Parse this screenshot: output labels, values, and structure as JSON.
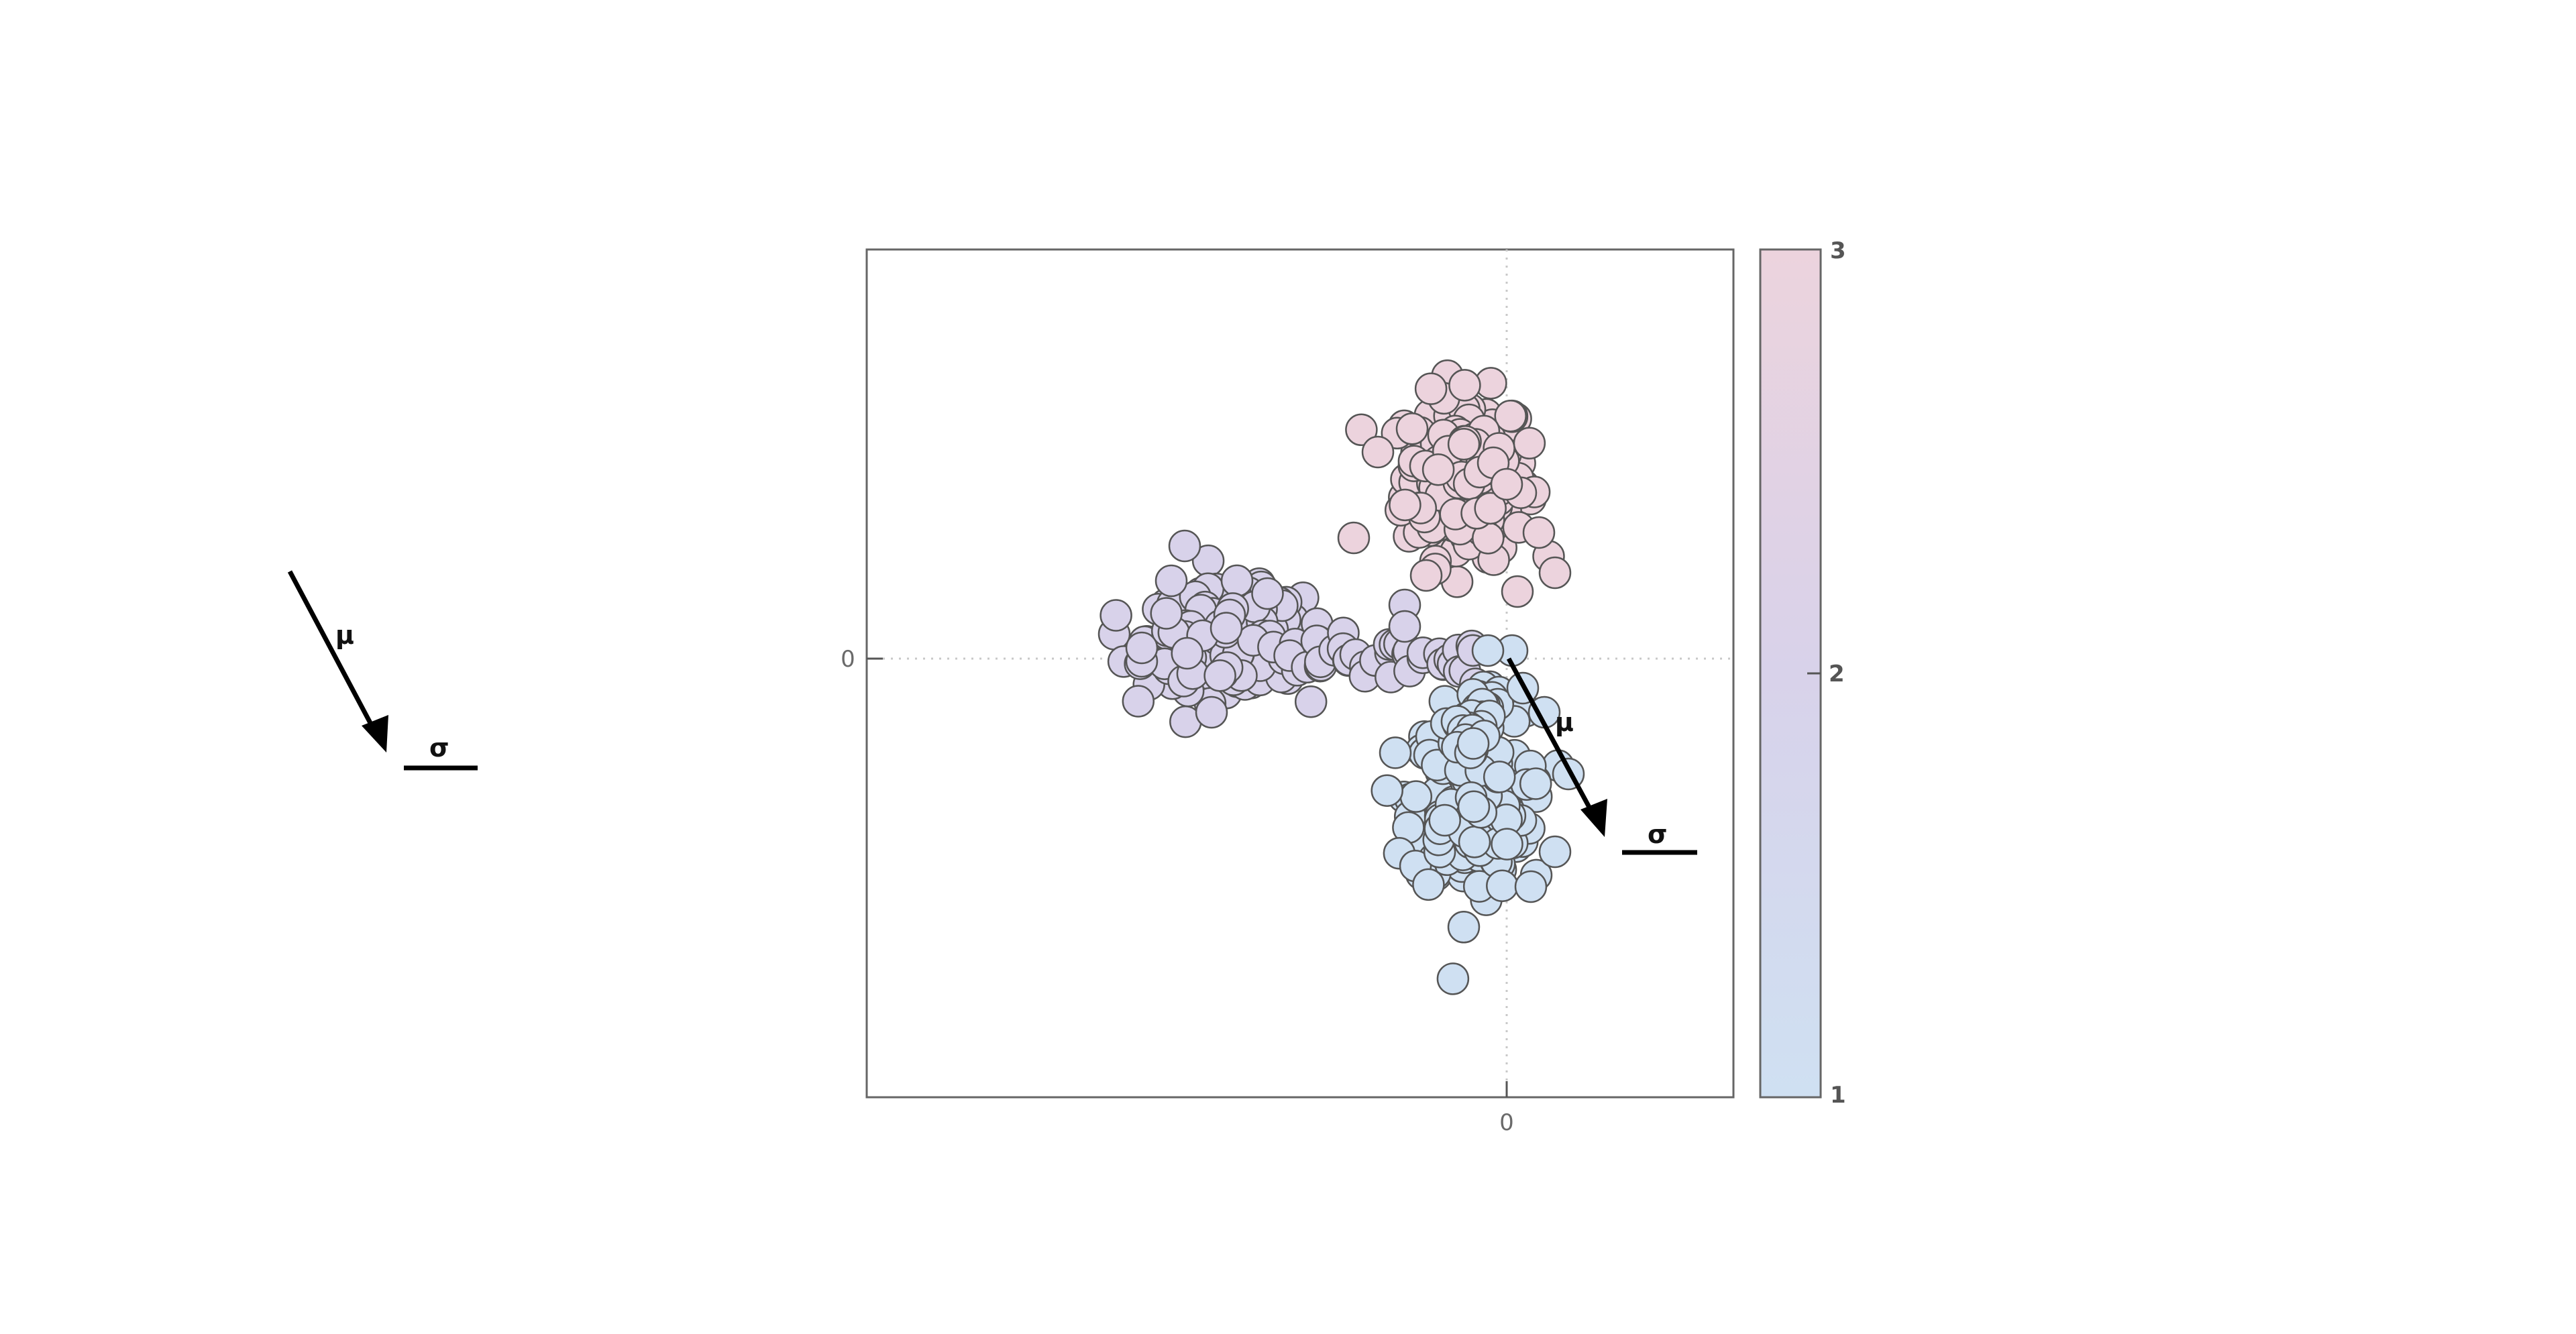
{
  "chart_data": {
    "type": "scatter",
    "title": "",
    "xlabel": "",
    "ylabel": "",
    "x_ticks": [
      "0"
    ],
    "y_ticks": [
      "0"
    ],
    "grid": "dotted crosshair at 0",
    "colorbar": {
      "ticks": [
        "1",
        "2",
        "3"
      ],
      "range": [
        1,
        3
      ],
      "color_low": "#cfe0f2",
      "color_mid": "#d8d2ea",
      "color_high": "#ecd3dd"
    },
    "legend": {
      "mu_label": "μ",
      "sigma_label": "σ"
    },
    "in_plot_annotation": {
      "mu_label": "μ",
      "sigma_label": "σ"
    },
    "clusters": [
      {
        "label": 3,
        "color": "#ecd3dd",
        "center": [
          -0.15,
          0.68
        ],
        "spread": [
          0.15,
          0.2
        ],
        "count": 220,
        "outliers": [
          [
            -0.48,
            0.77
          ],
          [
            -0.05,
            0.73
          ],
          [
            0.0,
            0.65
          ],
          [
            0.12,
            0.47
          ],
          [
            0.18,
            0.32
          ],
          [
            0.04,
            0.25
          ],
          [
            -0.57,
            0.45
          ],
          [
            -0.3,
            0.31
          ]
        ]
      },
      {
        "label": 2,
        "color": "#d8d2ea",
        "center": [
          -1.05,
          0.07
        ],
        "spread": [
          0.19,
          0.12
        ],
        "count": 260,
        "tail": {
          "from": [
            -0.8,
            0.02
          ],
          "to": [
            -0.1,
            -0.01
          ],
          "count": 40
        },
        "outliers": [
          [
            -1.2,
            0.42
          ],
          [
            -1.25,
            0.29
          ],
          [
            -1.1,
            -0.2
          ],
          [
            -1.36,
            -0.01
          ],
          [
            -1.36,
            0.04
          ],
          [
            -0.38,
            0.2
          ],
          [
            -0.38,
            0.12
          ]
        ]
      },
      {
        "label": 1,
        "color": "#cfe0f2",
        "center": [
          -0.14,
          -0.53
        ],
        "spread": [
          0.14,
          0.22
        ],
        "count": 250,
        "neck": {
          "from": [
            -0.07,
            -0.12
          ],
          "to": [
            -0.16,
            -0.33
          ],
          "count": 30
        },
        "outliers": [
          [
            0.02,
            0.03
          ],
          [
            -0.07,
            0.03
          ],
          [
            0.06,
            -0.11
          ],
          [
            0.14,
            -0.2
          ],
          [
            0.23,
            -0.43
          ],
          [
            0.18,
            -0.72
          ],
          [
            0.09,
            -0.85
          ]
        ]
      }
    ]
  }
}
